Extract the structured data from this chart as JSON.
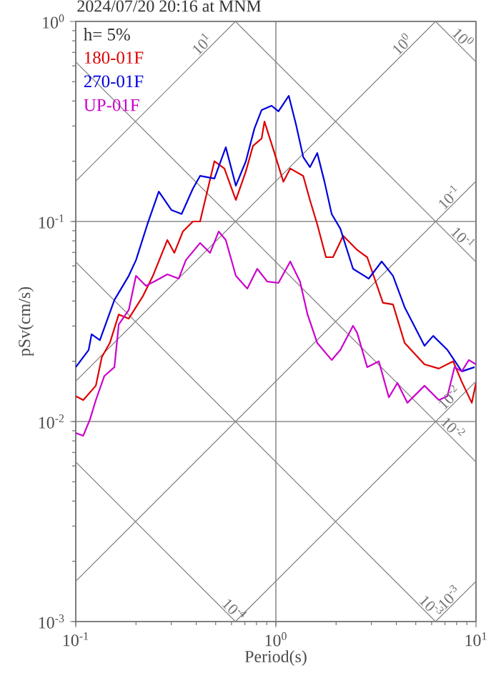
{
  "chart_data": {
    "type": "line",
    "title": "2024/07/20 20:16 at MNM",
    "xlabel": "Period(s)",
    "ylabel": "pSv(cm/s)",
    "log": "xy",
    "grid": true,
    "legend": "top left",
    "line_style": "solid",
    "marker": "none",
    "xlim": [
      0.1,
      10
    ],
    "ylim": [
      0.001,
      1
    ],
    "xticks": [
      {
        "value": 0.1,
        "label": "10$^{-1}$"
      },
      {
        "value": 1,
        "label": "10$^{0}$"
      },
      {
        "value": 10,
        "label": "10$^{1}$"
      }
    ],
    "yticks": [
      {
        "value": 0.001,
        "label": "10$^{-3}$"
      },
      {
        "value": 0.01,
        "label": "10$^{-2}$"
      },
      {
        "value": 0.1,
        "label": "10$^{-1}$"
      },
      {
        "value": 1,
        "label": "10$^{0}$"
      }
    ],
    "annotations": [
      "h= 5%",
      {
        "text": "10$^{1}$",
        "x": 0.454,
        "y": 0.723
      },
      {
        "text": "10$^{0}$",
        "x": 4.54,
        "y": 0.723
      },
      {
        "text": "10$^{0}$",
        "x": 8.07,
        "y": 0.779
      },
      {
        "text": "10$^{-1}$",
        "x": 7.81,
        "y": 0.124
      },
      {
        "text": "10$^{-1}$",
        "x": 8.07,
        "y": 0.0779
      },
      {
        "text": "10$^{-2}$",
        "x": 7.81,
        "y": 0.0124
      },
      {
        "text": "10$^{-2}$",
        "x": 7.2,
        "y": 0.00873
      },
      {
        "text": "10$^{-4}$",
        "x": 0.581,
        "y": 0.00108
      },
      {
        "text": "10$^{-3}$",
        "x": 5.62,
        "y": 0.00112
      },
      {
        "text": "10$^{-3}$",
        "x": 7.81,
        "y": 0.00124
      }
    ],
    "series": [
      {
        "color": "#808080",
        "x": [
          0.1,
          0.628
        ],
        "values": [
          0.159,
          1
        ]
      },
      {
        "color": "#808080",
        "x": [
          0.1,
          6.28
        ],
        "values": [
          0.0159,
          1
        ]
      },
      {
        "color": "#808080",
        "x": [
          0.1,
          10
        ],
        "values": [
          0.00159,
          0.159
        ]
      },
      {
        "color": "#808080",
        "x": [
          0.628,
          10
        ],
        "values": [
          0.001,
          0.0159
        ]
      },
      {
        "color": "#808080",
        "x": [
          6.28,
          10
        ],
        "values": [
          0.001,
          0.00159
        ]
      },
      {
        "color": "#808080",
        "x": [
          6.28,
          10
        ],
        "values": [
          1,
          0.628
        ]
      },
      {
        "color": "#808080",
        "x": [
          0.628,
          10
        ],
        "values": [
          1,
          0.0628
        ]
      },
      {
        "color": "#808080",
        "x": [
          0.1,
          10
        ],
        "values": [
          0.628,
          0.00628
        ]
      },
      {
        "color": "#808080",
        "x": [
          0.1,
          6.28
        ],
        "values": [
          0.0628,
          0.001
        ]
      },
      {
        "color": "#808080",
        "x": [
          0.1,
          0.628
        ],
        "values": [
          0.00628,
          0.001
        ]
      },
      {
        "name": "180-01F",
        "color": "#dd0000",
        "x": [
          0.1,
          0.109,
          0.126,
          0.135,
          0.148,
          0.164,
          0.184,
          0.217,
          0.243,
          0.287,
          0.311,
          0.343,
          0.385,
          0.418,
          0.493,
          0.553,
          0.631,
          0.708,
          0.769,
          0.849,
          0.877,
          0.984,
          1.09,
          1.18,
          1.37,
          1.48,
          1.61,
          1.78,
          1.93,
          2.17,
          2.55,
          2.86,
          3.43,
          3.85,
          4.4,
          5.53,
          6.52,
          7.69,
          8.49,
          9.53,
          10
        ],
        "values": [
          0.0134,
          0.0128,
          0.0151,
          0.021,
          0.0247,
          0.0343,
          0.0327,
          0.0425,
          0.0535,
          0.0808,
          0.0697,
          0.0891,
          0.1,
          0.1,
          0.2,
          0.184,
          0.128,
          0.178,
          0.239,
          0.26,
          0.316,
          0.22,
          0.158,
          0.184,
          0.169,
          0.128,
          0.0968,
          0.0663,
          0.0663,
          0.0848,
          0.072,
          0.0663,
          0.0392,
          0.0385,
          0.0247,
          0.0193,
          0.0184,
          0.02,
          0.0158,
          0.0124,
          0.0156
        ]
      },
      {
        "name": "270-01F",
        "color": "#0000dd",
        "x": [
          0.1,
          0.116,
          0.12,
          0.132,
          0.156,
          0.184,
          0.2,
          0.228,
          0.26,
          0.301,
          0.338,
          0.385,
          0.418,
          0.493,
          0.562,
          0.631,
          0.708,
          0.781,
          0.849,
          0.952,
          1.03,
          1.16,
          1.26,
          1.37,
          1.48,
          1.61,
          1.75,
          1.9,
          2.1,
          2.43,
          2.91,
          3.38,
          3.85,
          4.4,
          5.53,
          6.11,
          7.2,
          8.49,
          9.84
        ],
        "values": [
          0.0187,
          0.0228,
          0.0273,
          0.0255,
          0.0405,
          0.0535,
          0.0641,
          0.0968,
          0.141,
          0.114,
          0.109,
          0.146,
          0.169,
          0.164,
          0.235,
          0.151,
          0.2,
          0.291,
          0.361,
          0.379,
          0.355,
          0.425,
          0.306,
          0.21,
          0.187,
          0.22,
          0.158,
          0.109,
          0.092,
          0.058,
          0.0518,
          0.0631,
          0.0535,
          0.0373,
          0.0239,
          0.0268,
          0.0228,
          0.0178,
          0.0187
        ]
      },
      {
        "name": "UP-01F",
        "color": "#cc00cc",
        "x": [
          0.1,
          0.109,
          0.118,
          0.126,
          0.139,
          0.156,
          0.164,
          0.184,
          0.2,
          0.224,
          0.247,
          0.287,
          0.327,
          0.355,
          0.418,
          0.469,
          0.518,
          0.562,
          0.631,
          0.72,
          0.807,
          0.906,
          1.03,
          1.18,
          1.32,
          1.44,
          1.61,
          1.9,
          2.1,
          2.43,
          2.55,
          2.86,
          3.27,
          3.67,
          4.05,
          4.54,
          5.53,
          6.52,
          7.2,
          7.81,
          8.49,
          9.21,
          10
        ],
        "values": [
          0.00877,
          0.00849,
          0.0103,
          0.0128,
          0.0169,
          0.0187,
          0.0306,
          0.0361,
          0.0535,
          0.0477,
          0.0501,
          0.0544,
          0.0518,
          0.0641,
          0.0781,
          0.0697,
          0.0891,
          0.0808,
          0.0535,
          0.0462,
          0.058,
          0.0501,
          0.0493,
          0.0631,
          0.0501,
          0.0343,
          0.0247,
          0.0203,
          0.0228,
          0.0301,
          0.0277,
          0.0187,
          0.02,
          0.0132,
          0.0156,
          0.0124,
          0.0151,
          0.0128,
          0.0134,
          0.0187,
          0.0178,
          0.0203,
          0.0193
        ]
      }
    ]
  }
}
